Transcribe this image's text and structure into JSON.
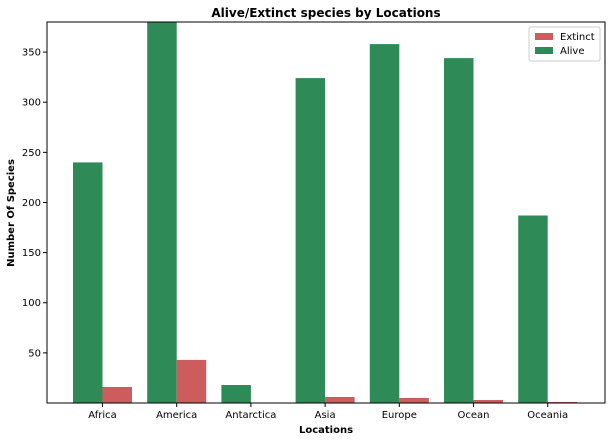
{
  "chart_data": {
    "type": "bar",
    "title": "Alive/Extinct species by Locations",
    "xlabel": "Locations",
    "ylabel": "Number Of Species",
    "categories": [
      "Africa",
      "America",
      "Antarctica",
      "Asia",
      "Europe",
      "Ocean",
      "Oceania"
    ],
    "series": [
      {
        "name": "Alive",
        "values": [
          240,
          380,
          18,
          324,
          358,
          344,
          187
        ],
        "color": "#2e8b57"
      },
      {
        "name": "Extinct",
        "values": [
          16,
          43,
          0,
          6,
          5,
          3,
          1
        ],
        "color": "#cd5c5c"
      }
    ],
    "yticks": [
      50,
      100,
      150,
      200,
      250,
      300,
      350
    ],
    "ylim": [
      0,
      380
    ],
    "legend_position": "top-right",
    "legend_order": [
      "Extinct",
      "Alive"
    ],
    "grid": false
  }
}
